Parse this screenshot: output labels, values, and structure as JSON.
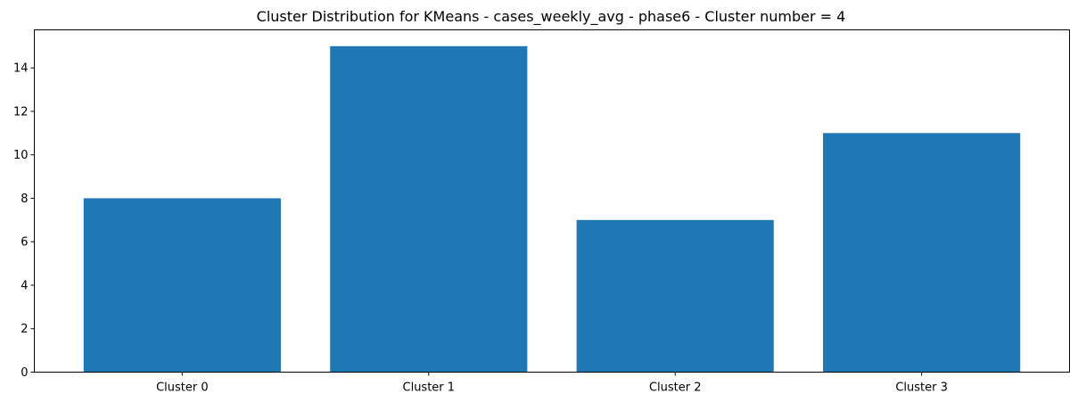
{
  "chart_data": {
    "type": "bar",
    "title": "Cluster Distribution for KMeans - cases_weekly_avg - phase6 - Cluster number = 4",
    "xlabel": "",
    "ylabel": "",
    "categories": [
      "Cluster 0",
      "Cluster 1",
      "Cluster 2",
      "Cluster 3"
    ],
    "values": [
      8,
      15,
      7,
      11
    ],
    "ylim": [
      0,
      15.75
    ],
    "yticks": [
      0,
      2,
      4,
      6,
      8,
      10,
      12,
      14
    ],
    "grid": false,
    "legend": "none",
    "bar_color": "#1f77b4"
  }
}
